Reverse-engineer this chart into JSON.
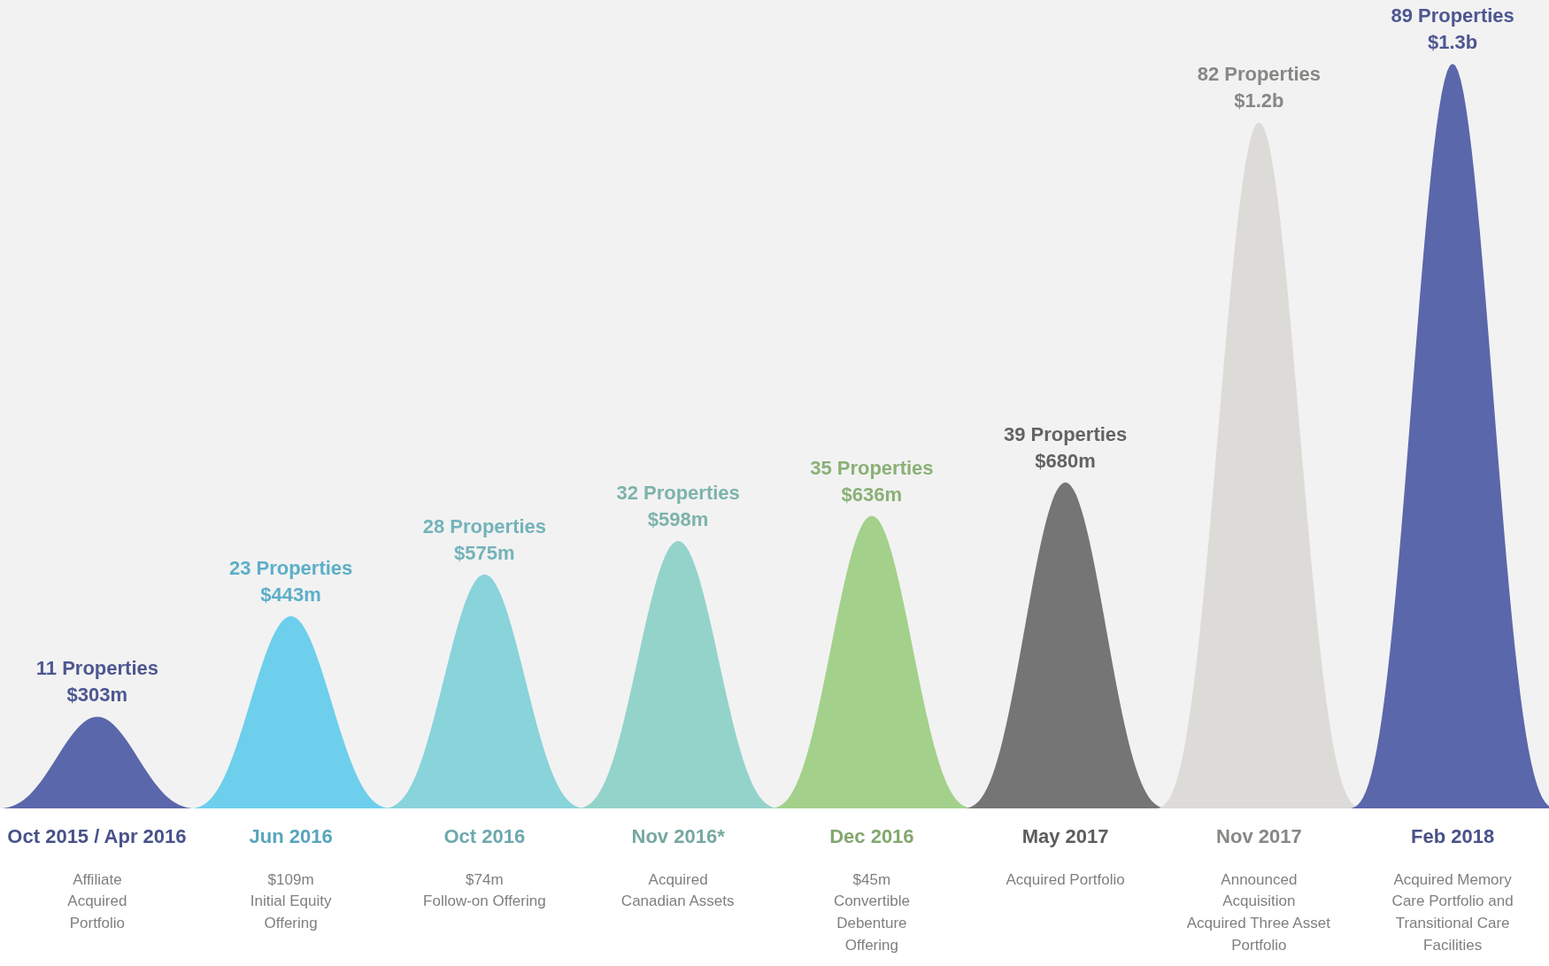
{
  "chart_data": {
    "type": "other",
    "categories": [
      "Oct 2015 / Apr 2016",
      "Jun 2016",
      "Oct 2016",
      "Nov 2016*",
      "Dec 2016",
      "May 2017",
      "Nov 2017",
      "Feb 2018"
    ],
    "values": [
      11,
      23,
      28,
      32,
      35,
      39,
      82,
      89
    ],
    "value_labels": [
      "11 Properties\n$303m",
      "23 Properties\n$443m",
      "28 Properties\n$575m",
      "32 Properties\n$598m",
      "35 Properties\n$636m",
      "39 Properties\n$680m",
      "82 Properties\n$1.2b",
      "89 Properties\n$1.3b"
    ],
    "colors": [
      "#5b67ab",
      "#6dcfec",
      "#89d3db",
      "#94d3ca",
      "#a3d18b",
      "#757575",
      "#dddbd7",
      "#5b67ab"
    ],
    "annotations": [
      "Affiliate\nAcquired\nPortfolio",
      "$109m\nInitial Equity\nOffering",
      "$74m\nFollow-on Offering",
      "Acquired\nCanadian Assets",
      "$45m\nConvertible\nDebenture\nOffering",
      "Acquired Portfolio",
      "Announced\nAcquisition\nAcquired Three Asset\nPortfolio",
      "Acquired Memory\nCare Portfolio and\nTransitional Care\nFacilities"
    ]
  }
}
